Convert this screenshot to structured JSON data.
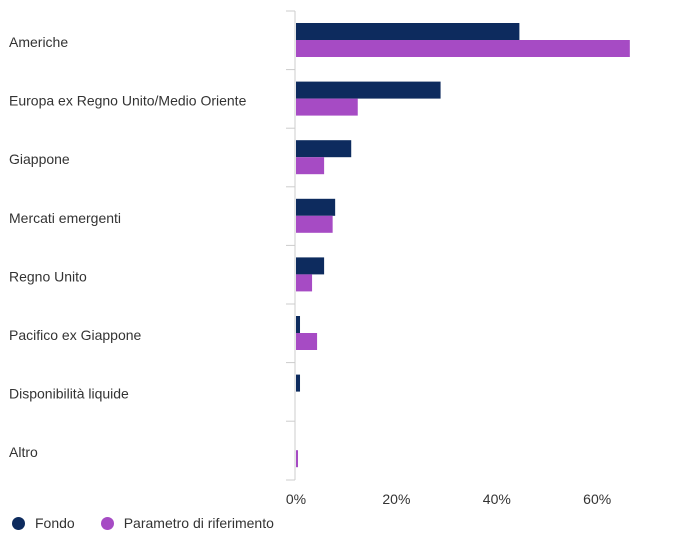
{
  "chart_data": {
    "type": "bar",
    "orientation": "horizontal",
    "categories": [
      "Americhe",
      "Europa ex Regno Unito/Medio Oriente",
      "Giappone",
      "Mercati emergenti",
      "Regno Unito",
      "Pacifico ex Giappone",
      "Disponibilità liquide",
      "Altro"
    ],
    "series": [
      {
        "name": "Fondo",
        "color": "#0d2b5e",
        "values": [
          44.5,
          28.8,
          11.0,
          7.8,
          5.6,
          0.8,
          0.8,
          0.0
        ]
      },
      {
        "name": "Parametro di riferimento",
        "color": "#a64bc4",
        "values": [
          66.5,
          12.3,
          5.6,
          7.3,
          3.2,
          4.2,
          0.0,
          0.4
        ]
      }
    ],
    "xlim": [
      0,
      78
    ],
    "ticks": [
      0,
      20,
      40,
      60
    ],
    "tick_labels": [
      "0%",
      "20%",
      "40%",
      "60%"
    ],
    "legend_position": "bottom-left",
    "grid": false
  }
}
